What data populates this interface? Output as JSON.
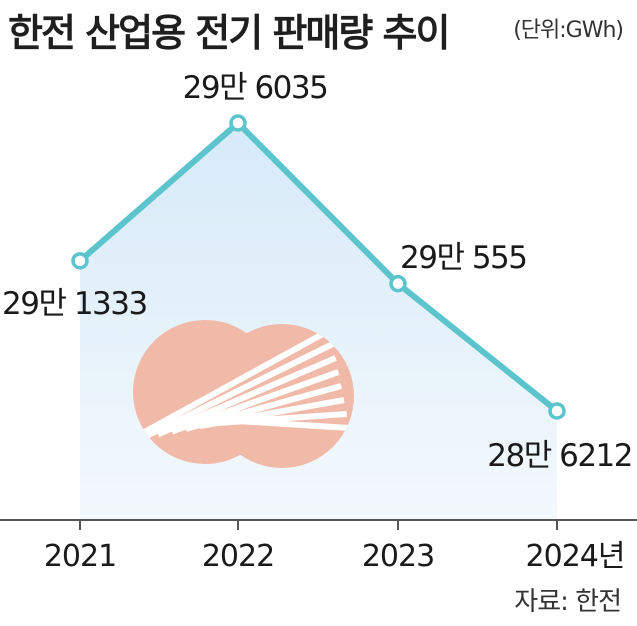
{
  "title": "한전 산업용 전기 판매량 추이",
  "unit": "(단위:GWh)",
  "source": "자료: 한전",
  "colors": {
    "line": "#5bc4cc",
    "area_top": "#d6eaf8",
    "area_bottom": "#f4f9fd",
    "logo": "#f0b9a8",
    "axis": "#555555"
  },
  "logo_icon": "kepco-logo",
  "chart_data": {
    "type": "line",
    "title": "한전 산업용 전기 판매량 추이",
    "unit": "GWh",
    "categories": [
      "2021",
      "2022",
      "2023",
      "2024년"
    ],
    "values": [
      291333,
      296035,
      290555,
      286212
    ],
    "labels": [
      "29만 1333",
      "29만 6035",
      "29만 555",
      "28만 6212"
    ],
    "ylim": [
      280000,
      298000
    ],
    "grid": false,
    "legend": "none"
  }
}
